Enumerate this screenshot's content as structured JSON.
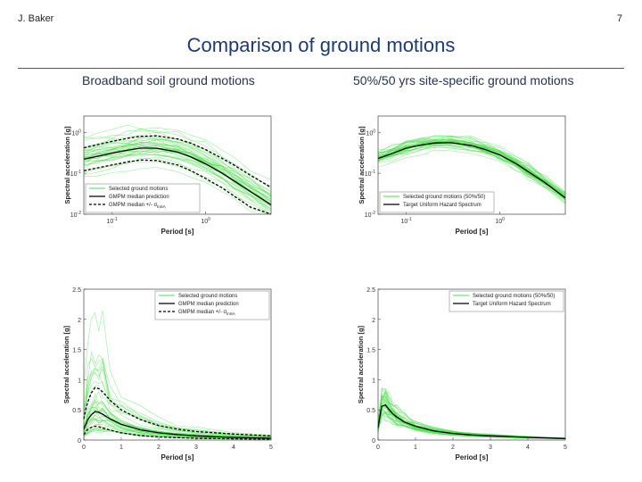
{
  "slide": {
    "author": "J. Baker",
    "page_number": "7",
    "title": "Comparison of ground motions",
    "left_column_title": "Broadband soil ground motions",
    "right_column_title": "50%/50 yrs site-specific ground motions"
  },
  "colors": {
    "ground_motion_lines": "#4ddc4d",
    "median_line": "#000000",
    "title_text": "#1f3a6e"
  },
  "chart_data": [
    {
      "id": "broadband-log",
      "type": "line",
      "xscale": "log",
      "yscale": "log",
      "xlim": [
        0.05,
        5
      ],
      "ylim": [
        0.01,
        2.5
      ],
      "xticks": [
        {
          "value": 0.1,
          "base": "10",
          "exp": "-1"
        },
        {
          "value": 1,
          "base": "10",
          "exp": "0"
        }
      ],
      "yticks": [
        {
          "value": 0.01,
          "base": "10",
          "exp": "-2"
        },
        {
          "value": 0.1,
          "base": "10",
          "exp": "-1"
        },
        {
          "value": 1,
          "base": "10",
          "exp": "0"
        }
      ],
      "xlabel": "Period [s]",
      "ylabel": "Spectral acceleration [g]",
      "x": [
        0.05,
        0.07,
        0.1,
        0.15,
        0.2,
        0.3,
        0.5,
        0.7,
        1,
        1.5,
        2,
        3,
        5
      ],
      "series": [
        {
          "name": "GMPM median prediction",
          "style": "solid",
          "values": [
            0.22,
            0.26,
            0.31,
            0.37,
            0.41,
            0.41,
            0.33,
            0.25,
            0.17,
            0.1,
            0.066,
            0.036,
            0.017
          ]
        },
        {
          "name": "GMPM median +σ lnSA",
          "style": "dashed",
          "values": [
            0.42,
            0.5,
            0.6,
            0.72,
            0.8,
            0.82,
            0.69,
            0.54,
            0.38,
            0.23,
            0.16,
            0.09,
            0.045
          ]
        },
        {
          "name": "GMPM median −σ lnSA",
          "style": "dashed",
          "values": [
            0.115,
            0.135,
            0.16,
            0.19,
            0.21,
            0.205,
            0.16,
            0.115,
            0.075,
            0.044,
            0.028,
            0.015,
            0.0065
          ]
        }
      ],
      "records": {
        "count": 40,
        "spread_lnSA": 0.6
      },
      "legend": {
        "position": "bottom-left",
        "items": [
          {
            "label": "Selected ground motions",
            "style": "green"
          },
          {
            "label": "GMPM median prediction",
            "style": "solid"
          },
          {
            "label": "GMPM median +/- σ",
            "sub": "lnSA",
            "style": "dashed"
          }
        ]
      }
    },
    {
      "id": "sitespecific-log",
      "type": "line",
      "xscale": "log",
      "yscale": "log",
      "xlim": [
        0.05,
        5
      ],
      "ylim": [
        0.01,
        2.5
      ],
      "xticks": [
        {
          "value": 0.1,
          "base": "10",
          "exp": "-1"
        },
        {
          "value": 1,
          "base": "10",
          "exp": "0"
        }
      ],
      "yticks": [
        {
          "value": 0.01,
          "base": "10",
          "exp": "-2"
        },
        {
          "value": 0.1,
          "base": "10",
          "exp": "-1"
        },
        {
          "value": 1,
          "base": "10",
          "exp": "0"
        }
      ],
      "xlabel": "Period [s]",
      "ylabel": "Spectral acceleration [g]",
      "x": [
        0.05,
        0.07,
        0.1,
        0.15,
        0.2,
        0.3,
        0.5,
        0.7,
        1,
        1.5,
        2,
        3,
        5
      ],
      "series": [
        {
          "name": "Target Uniform Hazard Spectrum",
          "style": "solid",
          "values": [
            0.23,
            0.3,
            0.41,
            0.5,
            0.55,
            0.56,
            0.47,
            0.38,
            0.28,
            0.17,
            0.11,
            0.06,
            0.025
          ]
        }
      ],
      "records": {
        "count": 40,
        "spread_lnSA": 0.18
      },
      "legend": {
        "position": "bottom-left",
        "items": [
          {
            "label": "Selected ground motions (50%/50)",
            "style": "green"
          },
          {
            "label": "Target Uniform Hazard Spectrum",
            "style": "solid"
          }
        ]
      }
    },
    {
      "id": "broadband-linear",
      "type": "line",
      "xscale": "linear",
      "yscale": "linear",
      "xlim": [
        0,
        5
      ],
      "ylim": [
        0,
        2.5
      ],
      "xticks": [
        {
          "value": 0,
          "label": "0"
        },
        {
          "value": 1,
          "label": "1"
        },
        {
          "value": 2,
          "label": "2"
        },
        {
          "value": 3,
          "label": "3"
        },
        {
          "value": 4,
          "label": "4"
        },
        {
          "value": 5,
          "label": "5"
        }
      ],
      "yticks": [
        {
          "value": 0,
          "label": "0"
        },
        {
          "value": 0.5,
          "label": "0.5"
        },
        {
          "value": 1,
          "label": "1"
        },
        {
          "value": 1.5,
          "label": "1.5"
        },
        {
          "value": 2,
          "label": "2"
        },
        {
          "value": 2.5,
          "label": "2.5"
        }
      ],
      "xlabel": "Period [s]",
      "ylabel": "Spectral acceleration [g]",
      "x": [
        0,
        0.05,
        0.1,
        0.2,
        0.3,
        0.4,
        0.5,
        0.7,
        1,
        1.5,
        2,
        2.5,
        3,
        4,
        5
      ],
      "series": [
        {
          "name": "GMPM median prediction",
          "style": "solid",
          "values": [
            0.18,
            0.25,
            0.33,
            0.42,
            0.47,
            0.46,
            0.43,
            0.35,
            0.26,
            0.17,
            0.12,
            0.09,
            0.07,
            0.045,
            0.03
          ]
        },
        {
          "name": "GMPM median +σ lnSA",
          "style": "dashed",
          "values": [
            0.35,
            0.5,
            0.62,
            0.78,
            0.87,
            0.85,
            0.8,
            0.66,
            0.5,
            0.34,
            0.24,
            0.18,
            0.14,
            0.1,
            0.07
          ]
        },
        {
          "name": "GMPM median −σ lnSA",
          "style": "dashed",
          "values": [
            0.09,
            0.13,
            0.17,
            0.21,
            0.23,
            0.22,
            0.2,
            0.165,
            0.12,
            0.075,
            0.05,
            0.04,
            0.03,
            0.02,
            0.013
          ]
        }
      ],
      "records": {
        "count": 40,
        "spread_lnSA": 0.6
      },
      "legend": {
        "position": "top-right",
        "items": [
          {
            "label": "Selected ground motions",
            "style": "green"
          },
          {
            "label": "GMPM median prediction",
            "style": "solid"
          },
          {
            "label": "GMPM median +/- σ",
            "sub": "lnSA",
            "style": "dashed"
          }
        ]
      }
    },
    {
      "id": "sitespecific-linear",
      "type": "line",
      "xscale": "linear",
      "yscale": "linear",
      "xlim": [
        0,
        5
      ],
      "ylim": [
        0,
        2.5
      ],
      "xticks": [
        {
          "value": 0,
          "label": "0"
        },
        {
          "value": 1,
          "label": "1"
        },
        {
          "value": 2,
          "label": "2"
        },
        {
          "value": 3,
          "label": "3"
        },
        {
          "value": 4,
          "label": "4"
        },
        {
          "value": 5,
          "label": "5"
        }
      ],
      "yticks": [
        {
          "value": 0,
          "label": "0"
        },
        {
          "value": 0.5,
          "label": "0.5"
        },
        {
          "value": 1,
          "label": "1"
        },
        {
          "value": 1.5,
          "label": "1.5"
        },
        {
          "value": 2,
          "label": "2"
        },
        {
          "value": 2.5,
          "label": "2.5"
        }
      ],
      "xlabel": "Period [s]",
      "ylabel": "Spectral acceleration [g]",
      "x": [
        0,
        0.05,
        0.1,
        0.2,
        0.3,
        0.4,
        0.5,
        0.7,
        1,
        1.5,
        2,
        2.5,
        3,
        4,
        5
      ],
      "series": [
        {
          "name": "Target Uniform Hazard Spectrum",
          "style": "solid",
          "values": [
            0.2,
            0.4,
            0.56,
            0.58,
            0.5,
            0.43,
            0.38,
            0.3,
            0.23,
            0.15,
            0.11,
            0.085,
            0.07,
            0.045,
            0.025
          ]
        }
      ],
      "records": {
        "count": 40,
        "spread_lnSA": 0.18
      },
      "legend": {
        "position": "top-right",
        "items": [
          {
            "label": "Selected ground motions (50%/50)",
            "style": "green"
          },
          {
            "label": "Target Uniform Hazard Spectrum",
            "style": "solid"
          }
        ]
      }
    }
  ]
}
